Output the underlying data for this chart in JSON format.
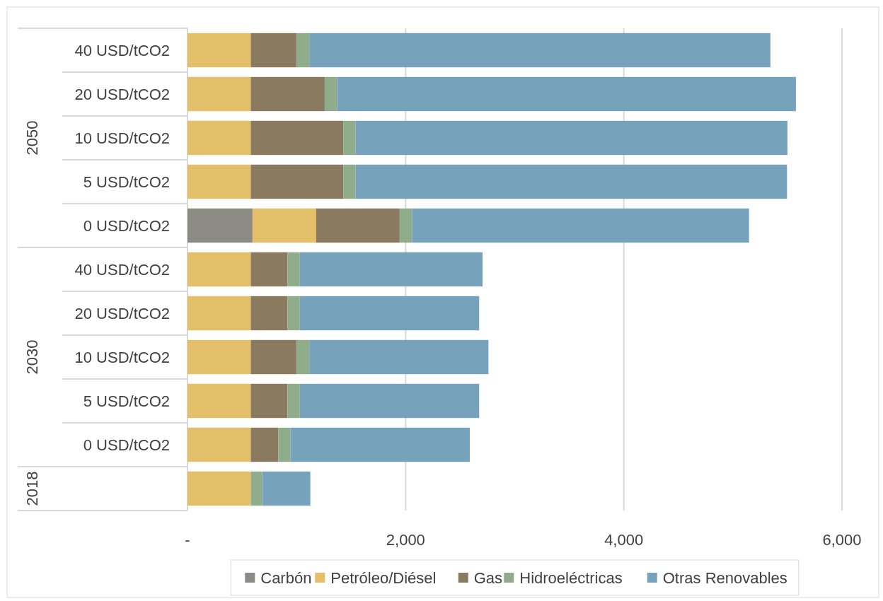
{
  "chart_data": {
    "type": "bar",
    "orientation": "horizontal",
    "stacked": true,
    "categories": [
      "40 USD/tCO2",
      "20 USD/tCO2",
      "10 USD/tCO2",
      "5 USD/tCO2",
      "0 USD/tCO2",
      "40 USD/tCO2",
      "20 USD/tCO2",
      "10 USD/tCO2",
      "5 USD/tCO2",
      "0 USD/tCO2",
      null
    ],
    "series": [
      {
        "name": "Carbón",
        "color": "#8c8c84",
        "values": [
          0,
          0,
          0,
          0,
          596,
          0,
          0,
          0,
          0,
          0,
          0
        ]
      },
      {
        "name": "Petróleo/Diésel",
        "color": "#e4bf6a",
        "values": [
          580,
          580,
          580,
          580,
          584,
          580,
          580,
          580,
          580,
          580,
          580
        ]
      },
      {
        "name": "Gas",
        "color": "#8a7b60",
        "values": [
          422,
          678,
          849,
          849,
          765,
          337,
          337,
          422,
          337,
          253,
          0
        ]
      },
      {
        "name": "Hidroeléctricas",
        "color": "#8fac8b",
        "values": [
          115,
          113,
          111,
          111,
          113,
          113,
          113,
          115,
          113,
          110,
          105
        ]
      },
      {
        "name": "Otras Renovables",
        "color": "#76a2bb",
        "values": [
          4227,
          4207,
          3960,
          3956,
          3090,
          1675,
          1644,
          1642,
          1644,
          1645,
          441
        ]
      }
    ],
    "annotations": [
      "2050",
      "2030",
      "2018"
    ],
    "xlim": [
      0,
      6000
    ],
    "xticks": [
      {
        "value": 0,
        "label": "-"
      },
      {
        "value": 2000,
        "label": "2,000"
      },
      {
        "value": 4000,
        "label": "4,000"
      },
      {
        "value": 6000,
        "label": "6,000"
      }
    ],
    "grid": "x",
    "legend": "bottom"
  }
}
